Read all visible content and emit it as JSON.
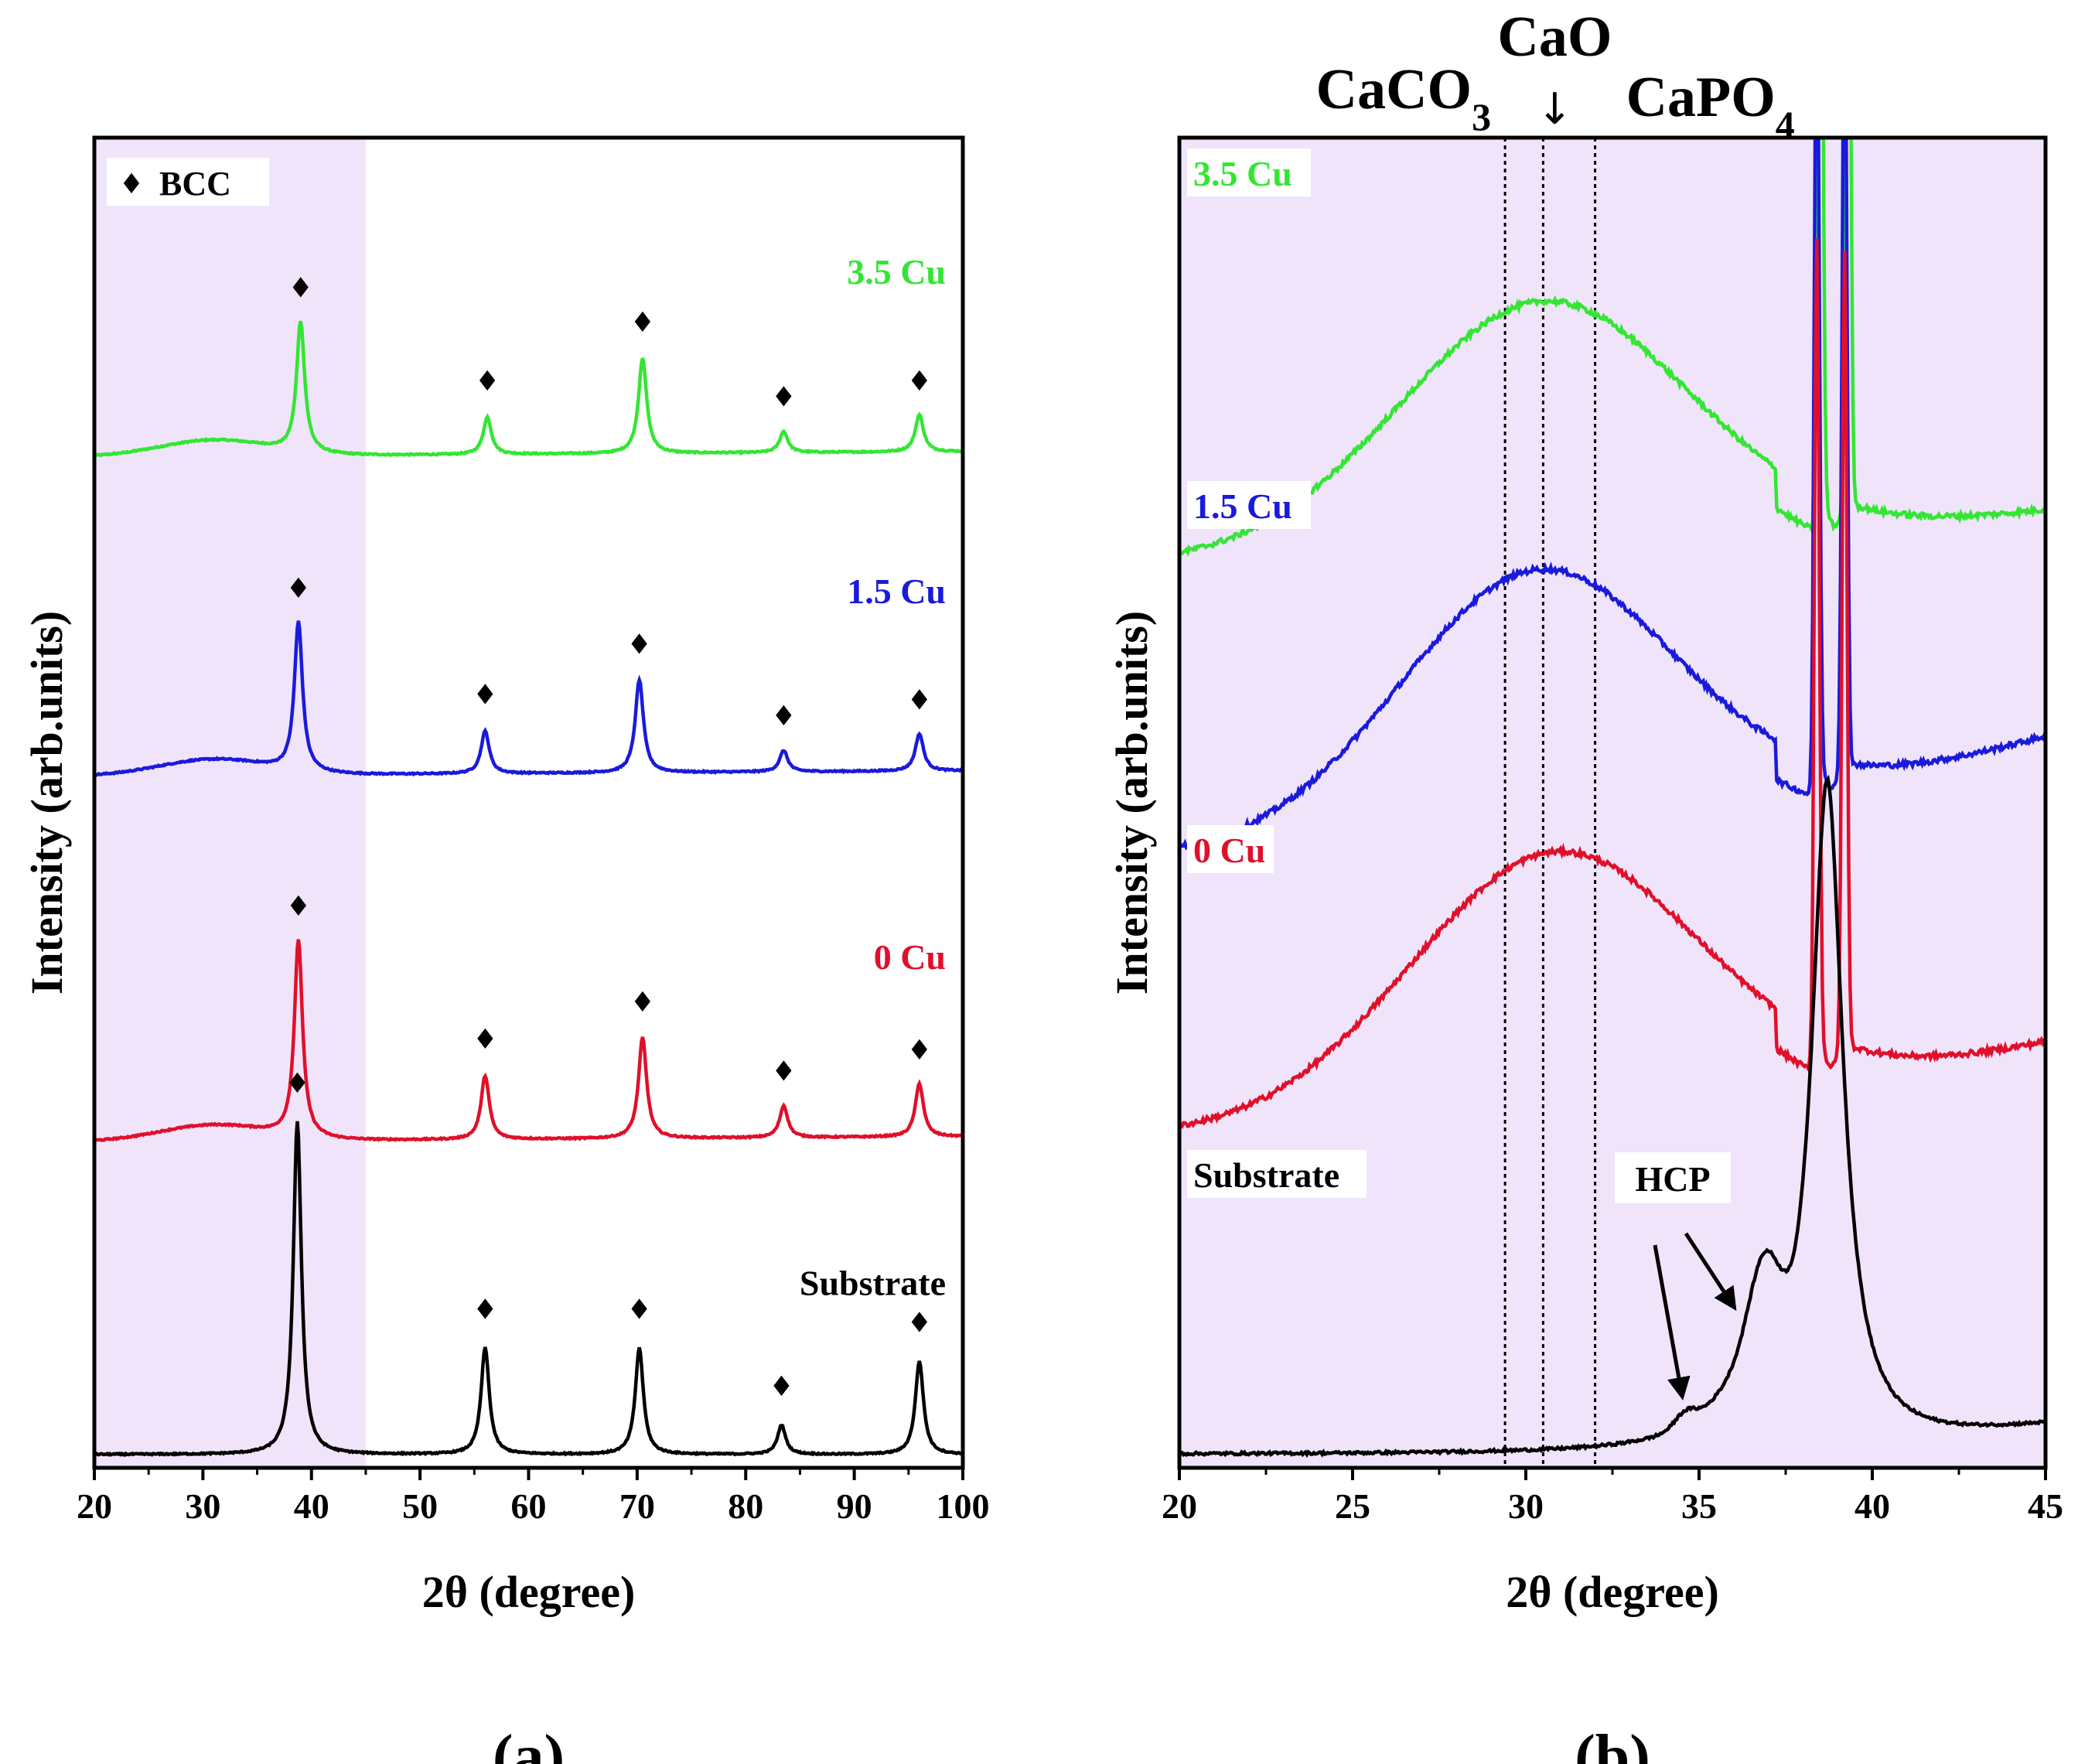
{
  "chart_data": [
    {
      "type": "line",
      "panel_label": "(a)",
      "xlabel": "2θ (degree)",
      "ylabel": "Intensity (arb.units)",
      "xlim": [
        20,
        100
      ],
      "x_ticks": [
        "20",
        "30",
        "40",
        "50",
        "60",
        "70",
        "80",
        "90",
        "100"
      ],
      "highlight_range": [
        20,
        45
      ],
      "legend": {
        "symbol": "♦",
        "label": "BCC",
        "placement": "top-left"
      },
      "marker_symbol": "♦",
      "series": [
        {
          "name": "3.5 Cu",
          "color": "#33e633",
          "offset": 0.76,
          "peaks": [
            [
              39.0,
              0.098
            ],
            [
              56.2,
              0.028
            ],
            [
              70.5,
              0.072
            ],
            [
              83.5,
              0.016
            ],
            [
              96.0,
              0.028
            ]
          ],
          "markers": [
            39.0,
            56.2,
            70.5,
            83.5,
            96.0
          ]
        },
        {
          "name": "1.5 Cu",
          "color": "#1a1adb",
          "offset": 0.52,
          "peaks": [
            [
              38.8,
              0.112
            ],
            [
              56.0,
              0.032
            ],
            [
              70.2,
              0.07
            ],
            [
              83.5,
              0.016
            ],
            [
              96.0,
              0.028
            ]
          ],
          "markers": [
            38.8,
            56.0,
            70.2,
            83.5,
            96.0
          ]
        },
        {
          "name": "0 Cu",
          "color": "#e0102a",
          "offset": 0.245,
          "peaks": [
            [
              38.8,
              0.148
            ],
            [
              56.0,
              0.048
            ],
            [
              70.5,
              0.076
            ],
            [
              83.5,
              0.024
            ],
            [
              96.0,
              0.04
            ]
          ],
          "markers": [
            38.8,
            56.0,
            70.5,
            83.5,
            96.0
          ]
        },
        {
          "name": "Substrate",
          "color": "#000000",
          "offset": 0.01,
          "peaks": [
            [
              38.7,
              0.25
            ],
            [
              56.0,
              0.08
            ],
            [
              70.2,
              0.08
            ],
            [
              83.3,
              0.022
            ],
            [
              96.0,
              0.07
            ]
          ],
          "markers": [
            38.7,
            56.0,
            70.2,
            83.3,
            96.0
          ]
        }
      ]
    },
    {
      "type": "line",
      "panel_label": "(b)",
      "xlabel": "2θ (degree)",
      "ylabel": "Intensity (arb.units)",
      "xlim": [
        20,
        45
      ],
      "x_ticks": [
        "20",
        "25",
        "30",
        "35",
        "40",
        "45"
      ],
      "phase_lines": [
        {
          "label": "CaCO",
          "sub": "3",
          "x": 29.4
        },
        {
          "label": "CaO",
          "sub": "",
          "x": 30.5
        },
        {
          "label": "CaPO",
          "sub": "4",
          "x": 32.0
        }
      ],
      "arrow_glyph": "↓",
      "annotation": {
        "label": "HCP",
        "targets": [
          34.6,
          36.9
        ]
      },
      "series": [
        {
          "name": "3.5 Cu",
          "color": "#33e633",
          "base_start": 0.68,
          "hump_height": 0.19,
          "hump_center": 30.5,
          "hump_width": 4.2,
          "end_level": 0.72,
          "peak_x": 38.9
        },
        {
          "name": "1.5 Cu",
          "color": "#1a1adb",
          "base_start": 0.46,
          "hump_height": 0.2,
          "hump_center": 30.3,
          "hump_width": 4.0,
          "end_level": 0.55,
          "peak_x": 38.8
        },
        {
          "name": "0 Cu",
          "color": "#e0102a",
          "base_start": 0.25,
          "hump_height": 0.2,
          "hump_center": 30.8,
          "hump_width": 4.2,
          "end_level": 0.32,
          "peak_x": 38.8
        },
        {
          "name": "Substrate",
          "color": "#000000",
          "base_start": 0.01,
          "hump_height": 0.0,
          "hump_center": 30,
          "hump_width": 4,
          "end_level": 0.03,
          "peak_x": 38.7
        }
      ]
    }
  ]
}
